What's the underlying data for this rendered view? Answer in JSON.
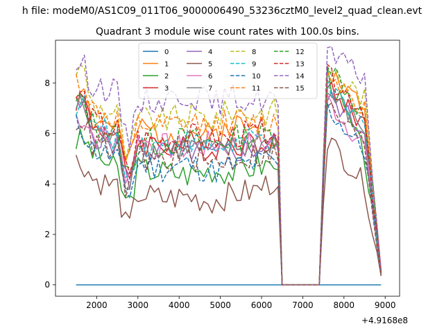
{
  "figure": {
    "suptitle": "h file: modeM0/AS1C09_011T06_9000006490_53236cztM0_level2_quad_clean.evt"
  },
  "chart_data": {
    "type": "line",
    "title": "Quadrant 3 module wise count rates with 100.0s bins.",
    "xlabel": "",
    "ylabel": "",
    "x_offset_label": "+4.9168e8",
    "xlim": [
      1000,
      9350
    ],
    "ylim": [
      -0.45,
      9.7
    ],
    "xticks": [
      2000,
      3000,
      4000,
      5000,
      6000,
      7000,
      8000,
      9000
    ],
    "yticks": [
      0,
      2,
      4,
      6,
      8
    ],
    "grid": false,
    "legend": {
      "placement": "top-center",
      "columns": 4
    },
    "x_segments": [
      {
        "start": 1500,
        "end": 6400,
        "step": 100
      },
      {
        "start": 6500,
        "end": 7400,
        "step": 100
      },
      {
        "start": 7500,
        "end": 8900,
        "step": 100
      }
    ],
    "series": [
      {
        "name": "0",
        "color": "#1f77b4",
        "dash": false,
        "level": 0.0,
        "seed": 1,
        "base": [
          0,
          0,
          0,
          0,
          0,
          0,
          0,
          0,
          0,
          0,
          0,
          0,
          0,
          0,
          0,
          0
        ]
      },
      {
        "name": "1",
        "color": "#ff7f0e",
        "dash": false,
        "level": 6.2,
        "seed": 2,
        "base": [
          7.6,
          7.6,
          6.5,
          6.3,
          4.5,
          6.2,
          6.0,
          6.1,
          5.9,
          6.4,
          6.1,
          6.0,
          0.75,
          8.5,
          7.0,
          0.5
        ]
      },
      {
        "name": "2",
        "color": "#2ca02c",
        "dash": false,
        "level": 4.6,
        "seed": 3,
        "base": [
          5.7,
          5.7,
          5.3,
          4.5,
          3.0,
          4.6,
          4.5,
          4.4,
          4.6,
          4.5,
          4.7,
          4.8,
          0.6,
          8.4,
          5.1,
          0.4
        ]
      },
      {
        "name": "3",
        "color": "#d62728",
        "dash": false,
        "level": 5.6,
        "seed": 4,
        "base": [
          7.4,
          7.3,
          6.4,
          5.8,
          4.0,
          5.7,
          5.5,
          5.6,
          5.4,
          5.7,
          5.6,
          5.9,
          0.7,
          7.8,
          6.4,
          0.45
        ]
      },
      {
        "name": "4",
        "color": "#9467bd",
        "dash": false,
        "level": 5.3,
        "seed": 5,
        "base": [
          7.0,
          7.0,
          6.0,
          5.5,
          3.9,
          5.5,
          5.2,
          5.4,
          5.1,
          5.3,
          5.4,
          5.6,
          0.65,
          7.5,
          6.1,
          0.45
        ]
      },
      {
        "name": "5",
        "color": "#8c564b",
        "dash": false,
        "level": 3.6,
        "seed": 6,
        "base": [
          4.9,
          4.8,
          4.2,
          3.9,
          2.0,
          3.6,
          3.4,
          3.5,
          3.3,
          3.6,
          3.7,
          4.1,
          0.5,
          5.8,
          4.0,
          0.35
        ]
      },
      {
        "name": "6",
        "color": "#e377c2",
        "dash": false,
        "level": 5.6,
        "seed": 7,
        "base": [
          6.7,
          6.6,
          6.0,
          5.6,
          4.2,
          5.7,
          5.5,
          5.4,
          5.6,
          5.5,
          5.6,
          5.7,
          0.7,
          7.3,
          5.5,
          0.45
        ]
      },
      {
        "name": "7",
        "color": "#7f7f7f",
        "dash": false,
        "level": 5.4,
        "seed": 8,
        "base": [
          7.1,
          7.0,
          6.1,
          5.6,
          3.8,
          5.4,
          5.3,
          5.5,
          5.2,
          5.4,
          5.5,
          5.7,
          0.7,
          7.6,
          6.2,
          0.45
        ]
      },
      {
        "name": "8",
        "color": "#bcbd22",
        "dash": true,
        "level": 6.6,
        "seed": 9,
        "base": [
          8.6,
          8.4,
          7.1,
          6.8,
          4.8,
          6.6,
          6.5,
          6.7,
          6.6,
          6.9,
          6.8,
          6.9,
          0.8,
          8.6,
          7.4,
          0.55
        ]
      },
      {
        "name": "9",
        "color": "#17becf",
        "dash": true,
        "level": 5.6,
        "seed": 10,
        "base": [
          7.2,
          7.1,
          6.3,
          5.8,
          4.0,
          5.6,
          5.5,
          5.7,
          5.4,
          5.6,
          5.7,
          5.8,
          0.7,
          7.7,
          6.3,
          0.45
        ]
      },
      {
        "name": "10",
        "color": "#1f77b4",
        "dash": true,
        "level": 4.8,
        "seed": 11,
        "base": [
          6.3,
          6.1,
          5.4,
          5.0,
          3.4,
          4.8,
          4.6,
          4.8,
          4.5,
          4.7,
          4.8,
          5.0,
          0.6,
          7.0,
          5.3,
          0.4
        ]
      },
      {
        "name": "11",
        "color": "#ff7f0e",
        "dash": true,
        "level": 6.3,
        "seed": 12,
        "base": [
          8.1,
          8.0,
          6.9,
          6.5,
          4.4,
          6.3,
          6.2,
          6.4,
          6.3,
          6.5,
          6.4,
          6.5,
          0.8,
          8.5,
          7.0,
          0.55
        ]
      },
      {
        "name": "12",
        "color": "#2ca02c",
        "dash": true,
        "level": 5.7,
        "seed": 13,
        "base": [
          7.2,
          7.2,
          6.4,
          5.9,
          4.1,
          5.7,
          5.6,
          5.8,
          5.6,
          5.8,
          5.9,
          6.0,
          0.7,
          8.9,
          6.6,
          0.5
        ]
      },
      {
        "name": "13",
        "color": "#d62728",
        "dash": true,
        "level": 5.8,
        "seed": 14,
        "base": [
          7.5,
          7.4,
          6.5,
          6.1,
          4.2,
          5.8,
          5.7,
          5.9,
          5.7,
          5.9,
          6.0,
          6.2,
          0.7,
          8.3,
          6.9,
          0.5
        ]
      },
      {
        "name": "14",
        "color": "#9467bd",
        "dash": true,
        "level": 7.4,
        "seed": 15,
        "base": [
          8.8,
          8.6,
          8.0,
          7.6,
          5.4,
          7.4,
          7.3,
          7.6,
          7.2,
          7.4,
          7.3,
          7.5,
          0.9,
          9.2,
          8.2,
          0.6
        ]
      },
      {
        "name": "15",
        "color": "#8c564b",
        "dash": true,
        "level": 5.0,
        "seed": 16,
        "base": [
          6.6,
          6.5,
          5.6,
          5.2,
          3.6,
          5.0,
          4.9,
          5.1,
          4.8,
          5.0,
          5.1,
          5.2,
          0.6,
          7.1,
          5.6,
          0.4
        ]
      }
    ]
  }
}
